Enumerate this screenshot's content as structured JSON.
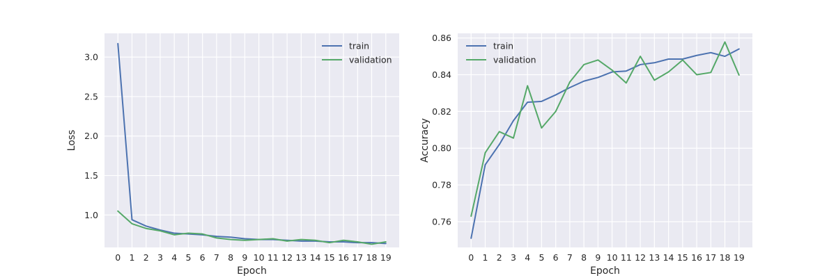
{
  "chart_data": [
    {
      "type": "line",
      "id": "loss",
      "xlabel": "Epoch",
      "ylabel": "Loss",
      "x": [
        0,
        1,
        2,
        3,
        4,
        5,
        6,
        7,
        8,
        9,
        10,
        11,
        12,
        13,
        14,
        15,
        16,
        17,
        18,
        19
      ],
      "x_ticks": [
        "0",
        "1",
        "2",
        "3",
        "4",
        "5",
        "6",
        "7",
        "8",
        "9",
        "10",
        "11",
        "12",
        "13",
        "14",
        "15",
        "16",
        "17",
        "18",
        "19"
      ],
      "xlim": [
        -0.95,
        19.95
      ],
      "ylim": [
        0.59,
        3.3
      ],
      "y_ticks": [
        1.0,
        1.5,
        2.0,
        2.5,
        3.0
      ],
      "y_tick_labels": [
        "1.0",
        "1.5",
        "2.0",
        "2.5",
        "3.0"
      ],
      "grid": true,
      "legend_position": "top-right",
      "series": [
        {
          "name": "train",
          "color": "#4c72b0",
          "values": [
            3.17,
            0.94,
            0.86,
            0.81,
            0.77,
            0.76,
            0.75,
            0.73,
            0.72,
            0.7,
            0.69,
            0.69,
            0.68,
            0.67,
            0.67,
            0.66,
            0.66,
            0.65,
            0.65,
            0.64
          ]
        },
        {
          "name": "validation",
          "color": "#55a868",
          "values": [
            1.05,
            0.89,
            0.83,
            0.8,
            0.75,
            0.77,
            0.76,
            0.71,
            0.69,
            0.68,
            0.69,
            0.7,
            0.67,
            0.69,
            0.68,
            0.65,
            0.68,
            0.66,
            0.63,
            0.66
          ]
        }
      ]
    },
    {
      "type": "line",
      "id": "accuracy",
      "xlabel": "Epoch",
      "ylabel": "Accuracy",
      "x": [
        0,
        1,
        2,
        3,
        4,
        5,
        6,
        7,
        8,
        9,
        10,
        11,
        12,
        13,
        14,
        15,
        16,
        17,
        18,
        19
      ],
      "x_ticks": [
        "0",
        "1",
        "2",
        "3",
        "4",
        "5",
        "6",
        "7",
        "8",
        "9",
        "10",
        "11",
        "12",
        "13",
        "14",
        "15",
        "16",
        "17",
        "18",
        "19"
      ],
      "xlim": [
        -0.95,
        19.95
      ],
      "ylim": [
        0.746,
        0.8625
      ],
      "y_ticks": [
        0.76,
        0.78,
        0.8,
        0.82,
        0.84,
        0.86
      ],
      "y_tick_labels": [
        "0.76",
        "0.78",
        "0.80",
        "0.82",
        "0.84",
        "0.86"
      ],
      "grid": true,
      "legend_position": "top-left",
      "series": [
        {
          "name": "train",
          "color": "#4c72b0",
          "values": [
            0.751,
            0.791,
            0.802,
            0.815,
            0.825,
            0.8255,
            0.829,
            0.833,
            0.8365,
            0.8385,
            0.8415,
            0.842,
            0.8455,
            0.8465,
            0.8485,
            0.8485,
            0.8505,
            0.852,
            0.85,
            0.854
          ]
        },
        {
          "name": "validation",
          "color": "#55a868",
          "values": [
            0.763,
            0.7975,
            0.809,
            0.8055,
            0.834,
            0.811,
            0.82,
            0.836,
            0.8455,
            0.848,
            0.8425,
            0.8355,
            0.85,
            0.837,
            0.8415,
            0.848,
            0.84,
            0.8412,
            0.8578,
            0.8398
          ]
        }
      ]
    }
  ]
}
